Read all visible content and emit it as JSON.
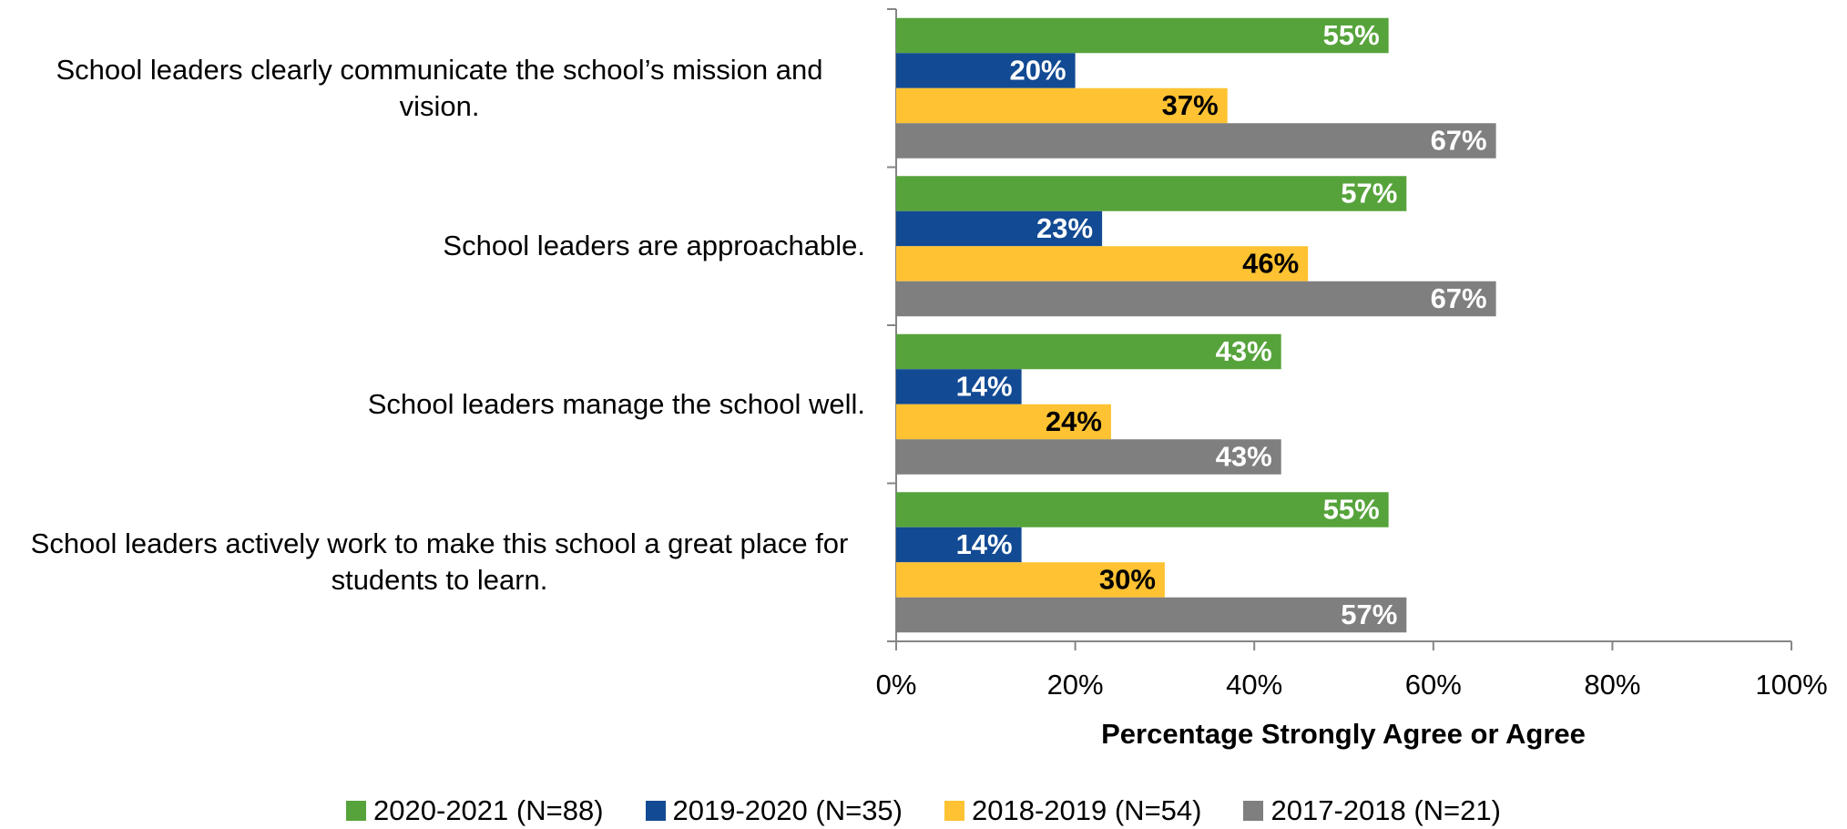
{
  "chart_data": {
    "type": "hbar",
    "categories": [
      "School leaders clearly communicate the school’s mission and vision.",
      "School leaders are approachable.",
      "School leaders manage the school well.",
      "School leaders actively work to make this school a great place for students to learn."
    ],
    "series": [
      {
        "name": "2020-2021 (N=88)",
        "color": "#56a33b",
        "label_color": "#ffffff",
        "values": [
          55,
          57,
          43,
          55
        ],
        "value_labels": [
          "55%",
          "57%",
          "43%",
          "55%"
        ]
      },
      {
        "name": "2019-2020 (N=35)",
        "color": "#124a93",
        "label_color": "#ffffff",
        "values": [
          20,
          23,
          14,
          14
        ],
        "value_labels": [
          "20%",
          "23%",
          "14%",
          "14%"
        ]
      },
      {
        "name": "2018-2019 (N=54)",
        "color": "#fec232",
        "label_color": "#000000",
        "values": [
          37,
          46,
          24,
          30
        ],
        "value_labels": [
          "37%",
          "46%",
          "24%",
          "30%"
        ]
      },
      {
        "name": "2017-2018 (N=21)",
        "color": "#7f7f7f",
        "label_color": "#ffffff",
        "values": [
          67,
          67,
          43,
          57
        ],
        "value_labels": [
          "67%",
          "67%",
          "43%",
          "57%"
        ]
      }
    ],
    "xlabel": "Percentage Strongly Agree or Agree",
    "xlim": [
      0,
      100
    ],
    "xticks": [
      {
        "value": 0,
        "label": "0%"
      },
      {
        "value": 20,
        "label": "20%"
      },
      {
        "value": 40,
        "label": "40%"
      },
      {
        "value": 60,
        "label": "60%"
      },
      {
        "value": 80,
        "label": "80%"
      },
      {
        "value": 100,
        "label": "100%"
      }
    ],
    "legend": "bottom"
  }
}
